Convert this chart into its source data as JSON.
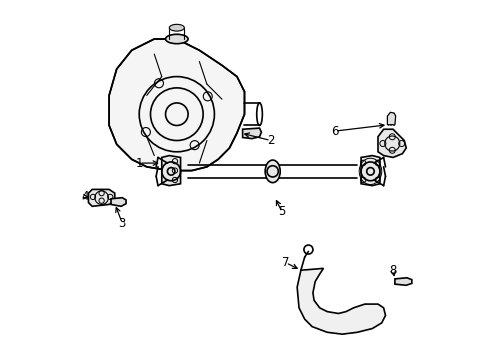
{
  "title": "",
  "background_color": "#ffffff",
  "line_color": "#000000",
  "line_width": 1.2,
  "figsize": [
    4.89,
    3.6
  ],
  "dpi": 100,
  "callout_data": [
    [
      1,
      0.22,
      0.57,
      0.28,
      0.57
    ],
    [
      2,
      0.57,
      0.63,
      0.49,
      0.65
    ],
    [
      3,
      0.175,
      0.41,
      0.155,
      0.462
    ],
    [
      4,
      0.075,
      0.48,
      0.087,
      0.478
    ],
    [
      5,
      0.6,
      0.44,
      0.58,
      0.48
    ],
    [
      6,
      0.74,
      0.655,
      0.882,
      0.672
    ],
    [
      7,
      0.61,
      0.305,
      0.65,
      0.285
    ],
    [
      8,
      0.895,
      0.285,
      0.9,
      0.26
    ]
  ]
}
